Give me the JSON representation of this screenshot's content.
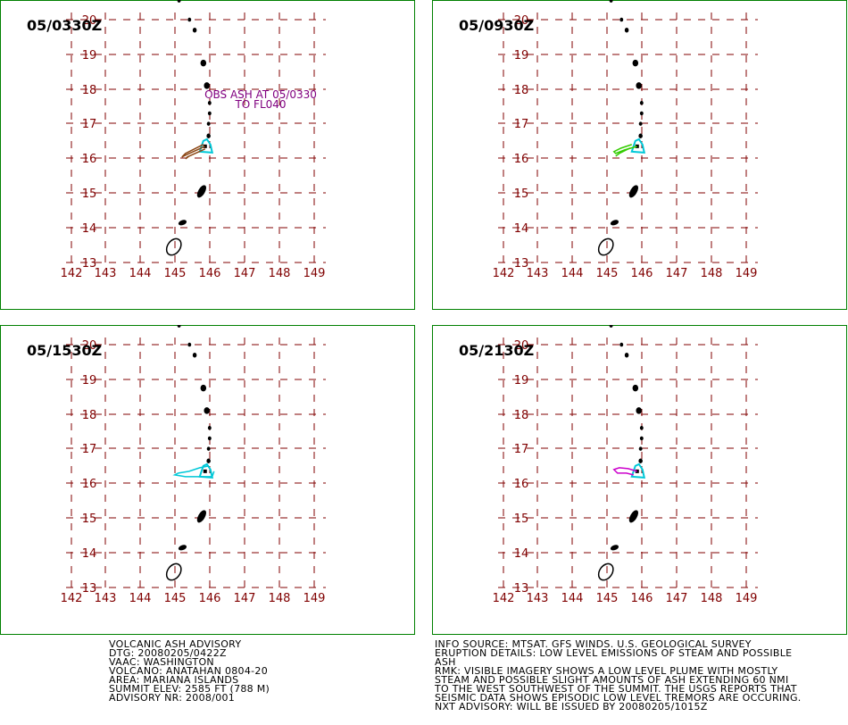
{
  "colors": {
    "frame": "#008000",
    "grid": "#800000",
    "label": "#800000",
    "land": "#000000",
    "volcano_marker": "#00c8d8",
    "annotation": "#800080"
  },
  "panels": [
    {
      "time_label": "05/0330Z",
      "plume_color": "#8b4513",
      "annotation": {
        "line1": "OBS ASH AT 05/0330",
        "line2": "TO FL040"
      }
    },
    {
      "time_label": "05/0930Z",
      "plume_color": "#33cc00",
      "annotation": {
        "line1": "",
        "line2": ""
      }
    },
    {
      "time_label": "05/1530Z",
      "plume_color": "#00c8d8",
      "annotation": {
        "line1": "",
        "line2": ""
      }
    },
    {
      "time_label": "05/2130Z",
      "plume_color": "#cc00cc",
      "annotation": {
        "line1": "",
        "line2": ""
      }
    }
  ],
  "map": {
    "lon_labels": [
      "142",
      "143",
      "144",
      "145",
      "146",
      "147",
      "148",
      "149"
    ],
    "lat_labels": [
      "13",
      "14",
      "15",
      "16",
      "17",
      "18",
      "19",
      "20"
    ]
  },
  "advisory_left": [
    "VOLCANIC ASH ADVISORY",
    "DTG: 20080205/0422Z",
    "VAAC: WASHINGTON",
    "VOLCANO: ANATAHAN 0804-20",
    "AREA: MARIANA ISLANDS",
    "SUMMIT ELEV: 2585 FT (788 M)",
    "ADVISORY NR: 2008/001"
  ],
  "advisory_right": [
    "INFO SOURCE: MTSAT. GFS WINDS. U.S. GEOLOGICAL SURVEY",
    "ERUPTION DETAILS: LOW LEVEL EMISSIONS OF STEAM AND POSSIBLE",
    "ASH",
    "RMK: VISIBLE IMAGERY SHOWS A LOW LEVEL PLUME WITH MOSTLY",
    "STEAM AND POSSIBLE SLIGHT AMOUNTS OF ASH EXTENDING 60 NMI",
    "TO THE WEST SOUTHWEST OF THE SUMMIT. THE USGS REPORTS THAT",
    "SEISMIC DATA SHOWS EPISODIC LOW LEVEL TREMORS ARE OCCURING.",
    "NXT ADVISORY: WILL BE ISSUED BY 20080205/1015Z"
  ]
}
